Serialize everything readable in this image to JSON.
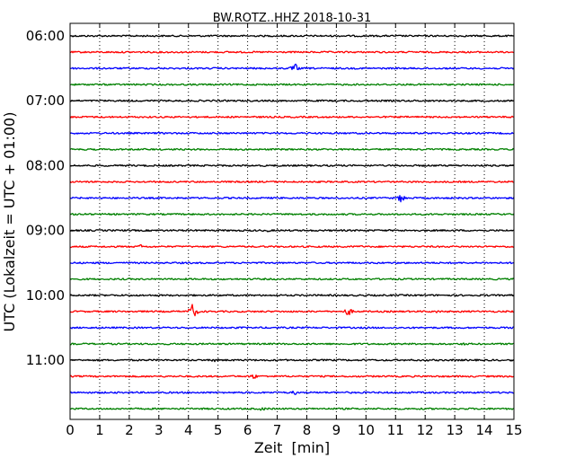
{
  "chart_data": {
    "type": "line",
    "title": "BW.ROTZ..HHZ 2018-10-31",
    "xlabel": "Zeit  [min]",
    "ylabel": "UTC (Lokalzeit = UTC + 01:00)",
    "xlim": [
      0,
      15
    ],
    "x_ticks": [
      "0",
      "1",
      "2",
      "3",
      "4",
      "5",
      "6",
      "7",
      "8",
      "9",
      "10",
      "11",
      "12",
      "13",
      "14",
      "15"
    ],
    "y_ticks": [
      "06:00",
      "07:00",
      "08:00",
      "09:00",
      "10:00",
      "11:00"
    ],
    "grid": "vertical dotted at each minute",
    "trace_colors": [
      "#000000",
      "#ff0000",
      "#0000ff",
      "#008000"
    ],
    "series": [
      {
        "start": "06:00",
        "color": "#000000",
        "events": []
      },
      {
        "start": "06:15",
        "color": "#ff0000",
        "events": []
      },
      {
        "start": "06:30",
        "color": "#0000ff",
        "events": [
          {
            "minute": 7.6,
            "amplitude": 6
          }
        ]
      },
      {
        "start": "06:45",
        "color": "#008000",
        "events": []
      },
      {
        "start": "07:00",
        "color": "#000000",
        "events": []
      },
      {
        "start": "07:15",
        "color": "#ff0000",
        "events": []
      },
      {
        "start": "07:30",
        "color": "#0000ff",
        "events": []
      },
      {
        "start": "07:45",
        "color": "#008000",
        "events": []
      },
      {
        "start": "08:00",
        "color": "#000000",
        "events": []
      },
      {
        "start": "08:15",
        "color": "#ff0000",
        "events": []
      },
      {
        "start": "08:30",
        "color": "#0000ff",
        "events": [
          {
            "minute": 11.2,
            "amplitude": 6
          }
        ]
      },
      {
        "start": "08:45",
        "color": "#008000",
        "events": [
          {
            "minute": 0.5,
            "amplitude": 3
          }
        ]
      },
      {
        "start": "09:00",
        "color": "#000000",
        "events": [
          {
            "minute": 6.7,
            "amplitude": 2
          }
        ]
      },
      {
        "start": "09:15",
        "color": "#ff0000",
        "events": [
          {
            "minute": 2.4,
            "amplitude": 3
          },
          {
            "minute": 9.8,
            "amplitude": 2
          }
        ]
      },
      {
        "start": "09:30",
        "color": "#0000ff",
        "events": []
      },
      {
        "start": "09:45",
        "color": "#008000",
        "events": []
      },
      {
        "start": "10:00",
        "color": "#000000",
        "events": []
      },
      {
        "start": "10:15",
        "color": "#ff0000",
        "events": [
          {
            "minute": 4.15,
            "amplitude": 10
          },
          {
            "minute": 9.4,
            "amplitude": 6
          },
          {
            "minute": 12.4,
            "amplitude": 2
          }
        ]
      },
      {
        "start": "10:30",
        "color": "#0000ff",
        "events": []
      },
      {
        "start": "10:45",
        "color": "#008000",
        "events": [
          {
            "minute": 13.3,
            "amplitude": 2
          }
        ]
      },
      {
        "start": "11:00",
        "color": "#000000",
        "events": [
          {
            "minute": 4.9,
            "amplitude": 3
          }
        ]
      },
      {
        "start": "11:15",
        "color": "#ff0000",
        "events": [
          {
            "minute": 6.2,
            "amplitude": 4
          }
        ]
      },
      {
        "start": "11:30",
        "color": "#0000ff",
        "events": [
          {
            "minute": 7.6,
            "amplitude": 3
          }
        ]
      },
      {
        "start": "11:45",
        "color": "#008000",
        "events": [
          {
            "minute": 6.5,
            "amplitude": 3
          }
        ]
      }
    ]
  }
}
